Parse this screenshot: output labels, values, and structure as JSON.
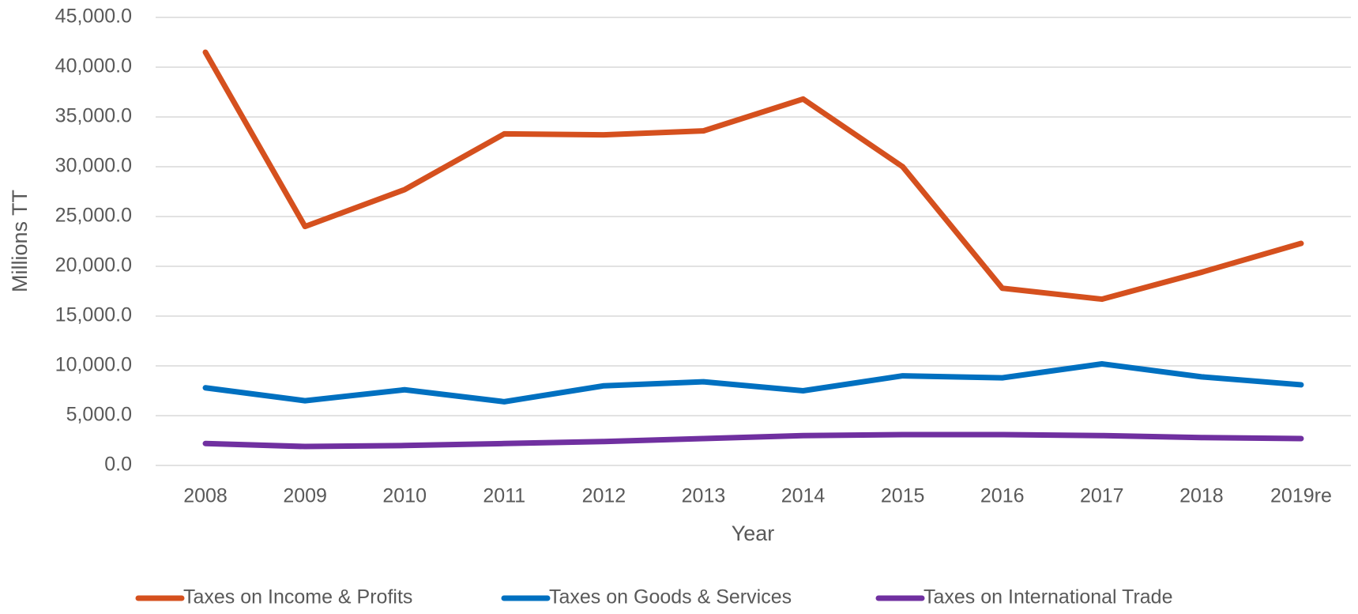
{
  "chart_data": {
    "type": "line",
    "x_label": "Year",
    "y_label": "Millions TT",
    "categories": [
      "2008",
      "2009",
      "2010",
      "2011",
      "2012",
      "2013",
      "2014",
      "2015",
      "2016",
      "2017",
      "2018",
      "2019re"
    ],
    "series": [
      {
        "name": "Taxes on Income & Profits",
        "color": "#d5501e",
        "values": [
          41500,
          24000,
          27700,
          33300,
          33200,
          33600,
          36800,
          30000,
          17800,
          16700,
          19400,
          22300
        ]
      },
      {
        "name": "Taxes on Goods & Services",
        "color": "#0070c0",
        "values": [
          7800,
          6500,
          7600,
          6400,
          8000,
          8400,
          7500,
          9000,
          8800,
          10200,
          8900,
          8100
        ]
      },
      {
        "name": "Taxes on International Trade",
        "color": "#7030a0",
        "values": [
          2200,
          1900,
          2000,
          2200,
          2400,
          2700,
          3000,
          3100,
          3100,
          3000,
          2800,
          2700
        ]
      }
    ],
    "ylim": [
      0,
      45000
    ],
    "yticks": [
      {
        "value": 0,
        "label": "0.0"
      },
      {
        "value": 5000,
        "label": "5,000.0"
      },
      {
        "value": 10000,
        "label": "10,000.0"
      },
      {
        "value": 15000,
        "label": "15,000.0"
      },
      {
        "value": 20000,
        "label": "20,000.0"
      },
      {
        "value": 25000,
        "label": "25,000.0"
      },
      {
        "value": 30000,
        "label": "30,000.0"
      },
      {
        "value": 35000,
        "label": "35,000.0"
      },
      {
        "value": 40000,
        "label": "40,000.0"
      },
      {
        "value": 45000,
        "label": "45,000.0"
      }
    ],
    "grid": true,
    "legend": "bottom"
  }
}
